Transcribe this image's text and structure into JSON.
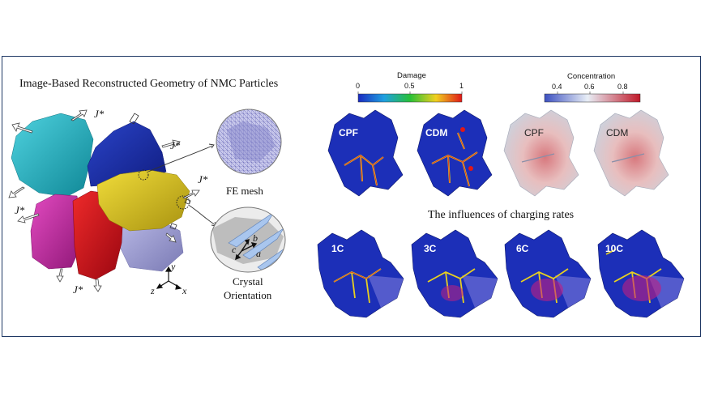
{
  "left": {
    "title": "Image-Based Reconstructed Geometry of NMC Particles",
    "flux_label": "J*",
    "fe_mesh_label": "FE mesh",
    "crystal_label_line1": "Crystal",
    "crystal_label_line2": "Orientation",
    "axes": {
      "x": "x",
      "y": "y",
      "z": "z"
    },
    "crystal_axes": {
      "a": "a",
      "b": "b",
      "c": "c"
    }
  },
  "colorbars": {
    "damage": {
      "label": "Damage",
      "ticks": [
        "0",
        "0.5",
        "1"
      ]
    },
    "concentration": {
      "label": "Concentration",
      "ticks": [
        "0.4",
        "0.6",
        "0.8"
      ]
    }
  },
  "top_panels": [
    {
      "label": "CPF"
    },
    {
      "label": "CDM"
    },
    {
      "label": "CPF"
    },
    {
      "label": "CDM"
    }
  ],
  "rates_title": "The influences of charging rates",
  "rate_panels": [
    {
      "label": "1C"
    },
    {
      "label": "3C"
    },
    {
      "label": "6C"
    },
    {
      "label": "10C"
    }
  ],
  "colors": {
    "frame": "#1f3864",
    "particle_cyan": "#1fb3c4",
    "particle_blue": "#1a2fa8",
    "particle_yellow": "#d8c21a",
    "particle_magenta": "#c7289f",
    "particle_red": "#d0101a",
    "particle_lavender": "#9c9ccf",
    "damage_blue": "#1c2fb8"
  }
}
